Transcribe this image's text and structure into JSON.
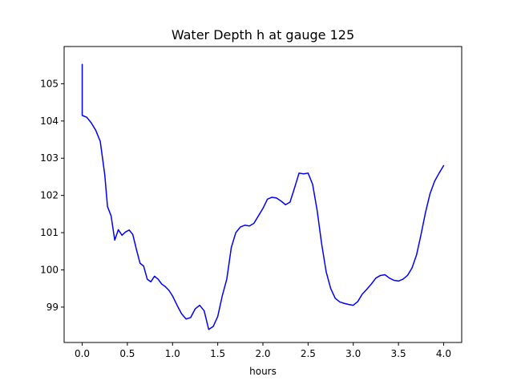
{
  "chart_data": {
    "type": "line",
    "title": "Water Depth h at gauge 125",
    "xlabel": "hours",
    "ylabel": "",
    "xlim": [
      -0.2,
      4.2
    ],
    "ylim": [
      98.05,
      106.0
    ],
    "grid": false,
    "xticks": [
      0.0,
      0.5,
      1.0,
      1.5,
      2.0,
      2.5,
      3.0,
      3.5,
      4.0
    ],
    "xtick_labels": [
      "0.0",
      "0.5",
      "1.0",
      "1.5",
      "2.0",
      "2.5",
      "3.0",
      "3.5",
      "4.0"
    ],
    "yticks": [
      99,
      100,
      101,
      102,
      103,
      104,
      105
    ],
    "ytick_labels": [
      "99",
      "100",
      "101",
      "102",
      "103",
      "104",
      "105"
    ],
    "series": [
      {
        "color": "#0000ff",
        "x": [
          0.0,
          0.0,
          0.0,
          0.05,
          0.1,
          0.15,
          0.2,
          0.25,
          0.28,
          0.32,
          0.36,
          0.4,
          0.44,
          0.48,
          0.52,
          0.56,
          0.6,
          0.64,
          0.68,
          0.72,
          0.76,
          0.8,
          0.84,
          0.88,
          0.92,
          0.96,
          1.0,
          1.05,
          1.1,
          1.15,
          1.2,
          1.25,
          1.3,
          1.35,
          1.4,
          1.45,
          1.5,
          1.55,
          1.6,
          1.65,
          1.7,
          1.75,
          1.8,
          1.85,
          1.9,
          1.95,
          2.0,
          2.05,
          2.1,
          2.15,
          2.2,
          2.25,
          2.3,
          2.35,
          2.4,
          2.45,
          2.5,
          2.55,
          2.6,
          2.65,
          2.7,
          2.75,
          2.8,
          2.85,
          2.9,
          2.95,
          3.0,
          3.05,
          3.1,
          3.15,
          3.2,
          3.25,
          3.3,
          3.35,
          3.4,
          3.45,
          3.5,
          3.55,
          3.6,
          3.65,
          3.7,
          3.75,
          3.8,
          3.85,
          3.9,
          3.95,
          4.0
        ],
        "y": [
          105.52,
          104.15,
          104.15,
          104.1,
          103.95,
          103.75,
          103.45,
          102.55,
          101.7,
          101.45,
          100.8,
          101.08,
          100.93,
          101.02,
          101.07,
          100.95,
          100.55,
          100.18,
          100.1,
          99.75,
          99.68,
          99.83,
          99.75,
          99.62,
          99.55,
          99.45,
          99.3,
          99.05,
          98.82,
          98.68,
          98.72,
          98.95,
          99.05,
          98.9,
          98.4,
          98.48,
          98.75,
          99.3,
          99.75,
          100.6,
          101.0,
          101.15,
          101.2,
          101.18,
          101.25,
          101.45,
          101.65,
          101.9,
          101.95,
          101.93,
          101.85,
          101.75,
          101.82,
          102.2,
          102.6,
          102.58,
          102.6,
          102.3,
          101.6,
          100.7,
          99.95,
          99.5,
          99.24,
          99.14,
          99.1,
          99.07,
          99.05,
          99.15,
          99.35,
          99.48,
          99.62,
          99.78,
          99.85,
          99.87,
          99.78,
          99.72,
          99.7,
          99.75,
          99.85,
          100.05,
          100.4,
          100.95,
          101.55,
          102.05,
          102.38,
          102.6,
          102.8
        ]
      }
    ]
  }
}
